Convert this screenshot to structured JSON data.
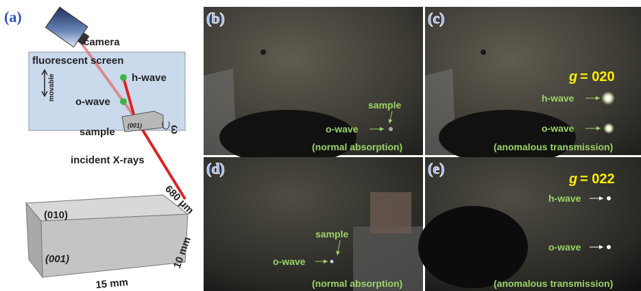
{
  "panel_a": {
    "label": "(a)",
    "camera": "camera",
    "screen": "fluorescent screen",
    "movable": "movable",
    "h_wave": "h-wave",
    "o_wave": "o-wave",
    "sample": "sample",
    "sample_face": "(001)",
    "omega": "ω",
    "incident": "incident X-rays",
    "crystal": {
      "top_face": "(010)",
      "front_face": "(001)",
      "thickness": "680 μm",
      "height": "10 mm",
      "width": "15 mm"
    }
  },
  "panel_b": {
    "label": "(b)",
    "sample": "sample",
    "o_wave": "o-wave",
    "condition": "(normal absorption)"
  },
  "panel_c": {
    "label": "(c)",
    "g_symbol": "g",
    "g_value": "= 020",
    "h_wave": "h-wave",
    "o_wave": "o-wave",
    "condition": "(anomalous transmission)"
  },
  "panel_d": {
    "label": "(d)",
    "sample": "sample",
    "o_wave": "o-wave",
    "condition": "(normal absorption)"
  },
  "panel_e": {
    "label": "(e)",
    "g_symbol": "g",
    "g_value": "= 022",
    "h_wave": "h-wave",
    "o_wave": "o-wave",
    "condition": "(anomalous transmission)"
  }
}
